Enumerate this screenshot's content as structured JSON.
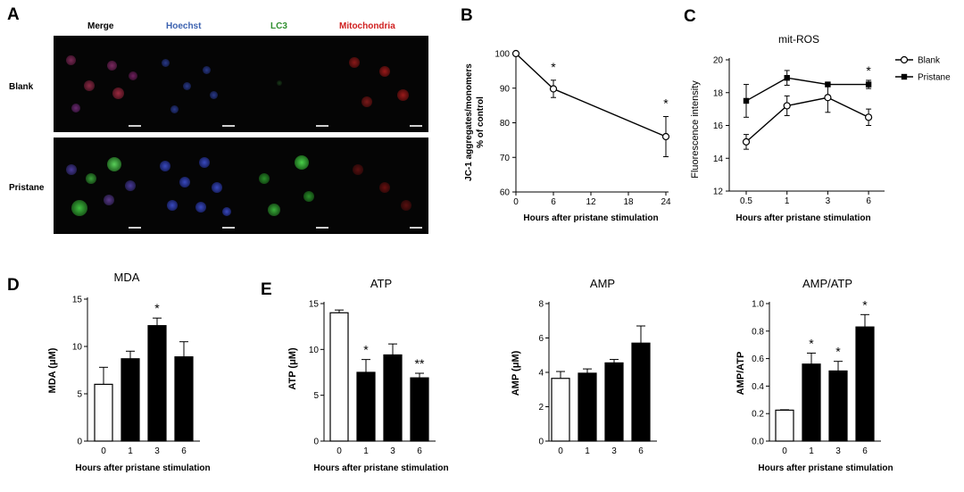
{
  "panelA": {
    "label": "A",
    "channels": [
      {
        "name": "Merge",
        "color": "#000000"
      },
      {
        "name": "Hoechst",
        "color": "#3c62b0"
      },
      {
        "name": "LC3",
        "color": "#2f8f2f"
      },
      {
        "name": "Mitochondria",
        "color": "#d02020"
      }
    ],
    "rows": [
      "Blank",
      "Pristane"
    ]
  },
  "chart_data": [
    {
      "id": "B",
      "panel_label": "B",
      "type": "line",
      "title": "",
      "xlabel": "Hours after pristane stimulation",
      "ylabel": [
        "JC-1 aggregates/monomers",
        "% of control"
      ],
      "x": [
        0,
        6,
        24
      ],
      "xticks": [
        "0",
        "6",
        "12",
        "18",
        "24"
      ],
      "xlim": [
        0,
        24
      ],
      "ylim": [
        60,
        100
      ],
      "yticks": [
        "60",
        "70",
        "80",
        "90",
        "100"
      ],
      "series": [
        {
          "values": [
            100,
            89.8,
            76
          ],
          "errors": [
            0,
            2.5,
            5.8
          ],
          "marker": "open-circle"
        }
      ],
      "annotations": [
        {
          "x": 6,
          "text": "*"
        },
        {
          "x": 24,
          "text": "*"
        }
      ]
    },
    {
      "id": "C",
      "panel_label": "C",
      "type": "line",
      "title": "mit-ROS",
      "xlabel": "Hours after pristane stimulation",
      "ylabel": "Fluorescence intensity",
      "categories": [
        "0.5",
        "1",
        "3",
        "6"
      ],
      "ylim": [
        12,
        20
      ],
      "yticks": [
        "12",
        "14",
        "16",
        "18",
        "20"
      ],
      "series": [
        {
          "name": "Blank",
          "values": [
            15.0,
            17.2,
            17.7,
            16.5
          ],
          "errors": [
            0.45,
            0.6,
            0.9,
            0.5
          ],
          "marker": "open-circle"
        },
        {
          "name": "Pristane",
          "values": [
            17.5,
            18.9,
            18.5,
            18.5
          ],
          "errors": [
            1.0,
            0.45,
            0.1,
            0.25
          ],
          "marker": "filled-square"
        }
      ],
      "legend_position": "right",
      "annotations": [
        {
          "category": "6",
          "text": "*"
        }
      ]
    },
    {
      "id": "D",
      "panel_label": "D",
      "type": "bar",
      "title": "MDA",
      "xlabel": "Hours after pristane stimulation",
      "ylabel": "MDA (μM)",
      "categories": [
        "0",
        "1",
        "3",
        "6"
      ],
      "values": [
        6.0,
        8.7,
        12.2,
        8.9
      ],
      "errors": [
        1.8,
        0.8,
        0.8,
        1.6
      ],
      "ylim": [
        0,
        15
      ],
      "yticks": [
        "0",
        "5",
        "10",
        "15"
      ],
      "stars": [
        "",
        "",
        "*",
        ""
      ]
    },
    {
      "id": "E1",
      "panel_label": "E",
      "type": "bar",
      "title": "ATP",
      "xlabel": "Hours after pristane stimulation",
      "ylabel": "ATP (μM)",
      "categories": [
        "0",
        "1",
        "3",
        "6"
      ],
      "values": [
        14.0,
        7.5,
        9.4,
        6.9
      ],
      "errors": [
        0.3,
        1.4,
        1.2,
        0.5
      ],
      "ylim": [
        0,
        15
      ],
      "yticks": [
        "0",
        "5",
        "10",
        "15"
      ],
      "stars": [
        "",
        "*",
        "",
        "**"
      ]
    },
    {
      "id": "E2",
      "panel_label": "",
      "type": "bar",
      "title": "AMP",
      "xlabel": "",
      "ylabel": "AMP (μM)",
      "categories": [
        "0",
        "1",
        "3",
        "6"
      ],
      "values": [
        3.65,
        3.95,
        4.55,
        5.7
      ],
      "errors": [
        0.4,
        0.25,
        0.2,
        1.0
      ],
      "ylim": [
        0,
        8
      ],
      "yticks": [
        "0",
        "2",
        "4",
        "6",
        "8"
      ],
      "stars": [
        "",
        "",
        "",
        ""
      ]
    },
    {
      "id": "E3",
      "panel_label": "",
      "type": "bar",
      "title": "AMP/ATP",
      "xlabel": "Hours after pristane stimulation",
      "ylabel": "AMP/ATP",
      "categories": [
        "0",
        "1",
        "3",
        "6"
      ],
      "values": [
        0.225,
        0.56,
        0.51,
        0.83
      ],
      "errors": [
        0.003,
        0.08,
        0.07,
        0.09
      ],
      "ylim": [
        0,
        1.0
      ],
      "yticks": [
        "0.0",
        "0.2",
        "0.4",
        "0.6",
        "0.8",
        "1.0"
      ],
      "stars": [
        "",
        "*",
        "*",
        "*"
      ]
    }
  ]
}
